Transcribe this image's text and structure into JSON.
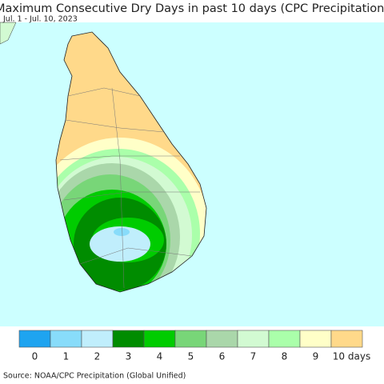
{
  "header": {
    "title": "Maximum Consecutive Dry Days in past 10 days (CPC Precipitation)",
    "subtitle": "Jul. 1 - Jul. 10, 2023"
  },
  "legend": {
    "items": [
      {
        "label": "0",
        "color": "#1ea4f0"
      },
      {
        "label": "1",
        "color": "#88dcfa"
      },
      {
        "label": "2",
        "color": "#c0eefc"
      },
      {
        "label": "3",
        "color": "#008c00"
      },
      {
        "label": "4",
        "color": "#00cc00"
      },
      {
        "label": "5",
        "color": "#78d678"
      },
      {
        "label": "6",
        "color": "#aad7aa"
      },
      {
        "label": "7",
        "color": "#d2fad2"
      },
      {
        "label": "8",
        "color": "#aaffaa"
      },
      {
        "label": "9",
        "color": "#ffffc8"
      },
      {
        "label": "10 days",
        "color": "#ffd98a"
      }
    ]
  },
  "footer": {
    "source": "Source: NOAA/CPC Precipitation (Global Unified)"
  }
}
